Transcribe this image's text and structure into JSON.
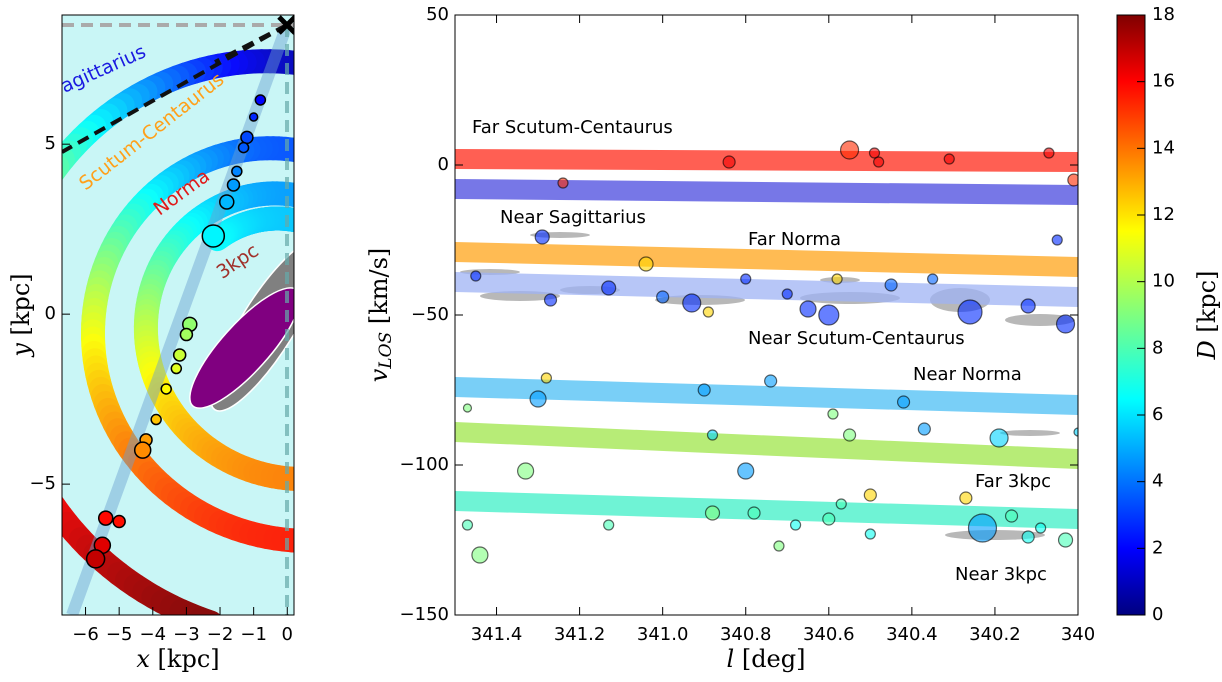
{
  "chart_data": [
    {
      "type": "scatter",
      "x_label": {
        "symbol": "x",
        "unit": "[kpc]"
      },
      "y_label": {
        "symbol": "y",
        "unit": "[kpc]"
      },
      "xlim": [
        -6.7,
        0.2
      ],
      "ylim": [
        -8.85,
        8.8
      ],
      "xticks": [
        {
          "value": -6,
          "label": "−6"
        },
        {
          "value": -5,
          "label": "−5"
        },
        {
          "value": -4,
          "label": "−4"
        },
        {
          "value": -3,
          "label": "−3"
        },
        {
          "value": -2,
          "label": "−2"
        },
        {
          "value": -1,
          "label": "−1"
        },
        0
      ],
      "yticks": [
        {
          "value": -5,
          "label": "−5"
        },
        0,
        5
      ],
      "arms": [
        {
          "name": "Sagittarius",
          "color": "#1a1ae0"
        },
        {
          "name": "Scutum-Centaurus",
          "color": "#ffa01a"
        },
        {
          "name": "Norma",
          "color": "#e01a1a"
        },
        {
          "name": "3kpc",
          "color": "#a0302a"
        }
      ],
      "points": {
        "x": [
          -0.8,
          -1.0,
          -1.2,
          -1.3,
          -1.5,
          -1.6,
          -1.8,
          -2.2,
          -2.9,
          -3.0,
          -3.2,
          -3.3,
          -3.6,
          -3.9,
          -4.2,
          -4.3,
          -5.0,
          -5.4,
          -5.5,
          -5.7
        ],
        "y": [
          6.3,
          5.8,
          5.2,
          4.9,
          4.2,
          3.8,
          3.3,
          2.3,
          -0.3,
          -0.6,
          -1.2,
          -1.6,
          -2.2,
          -3.1,
          -3.7,
          -4.0,
          -6.1,
          -6.0,
          -6.8,
          -7.2
        ],
        "D": [
          2.3,
          2.9,
          3.5,
          3.8,
          4.6,
          5.0,
          5.5,
          6.6,
          9.3,
          9.6,
          10.3,
          10.7,
          11.3,
          12.3,
          13.0,
          13.3,
          15.5,
          15.6,
          16.3,
          16.8
        ],
        "size": [
          5,
          4,
          6,
          5,
          5,
          6,
          7,
          11,
          7,
          6,
          6,
          5,
          5,
          5,
          6,
          8,
          6,
          7,
          8,
          9
        ]
      }
    },
    {
      "type": "scatter",
      "x_label": {
        "symbol": "l",
        "unit": "[deg]"
      },
      "y_label": {
        "symbol": "v",
        "subscript": "LOS",
        "unit": "[km/s]"
      },
      "xlim": [
        341.5,
        340
      ],
      "ylim": [
        -150,
        50
      ],
      "xticks": [
        341.4,
        341.2,
        {
          "value": 341,
          "label": "341.0"
        },
        340.8,
        340.6,
        340.4,
        340.2,
        340
      ],
      "yticks": [
        {
          "value": -150,
          "label": "−150"
        },
        {
          "value": -100,
          "label": "−100"
        },
        {
          "value": -50,
          "label": "−50"
        },
        0,
        50
      ],
      "bands": [
        {
          "name": "Far Scutum-Centaurus",
          "color": "#ff2a1a",
          "x": [
            341.5,
            340
          ],
          "values": [
            2,
            1
          ]
        },
        {
          "name": "Near Sagittarius",
          "color": "#4a4ae0",
          "x": [
            341.5,
            340
          ],
          "values": [
            -8,
            -10
          ]
        },
        {
          "name": "Far Norma",
          "color": "#ffa51a",
          "x": [
            341.5,
            340
          ],
          "values": [
            -29,
            -34
          ]
        },
        {
          "name": "Near Scutum-Centaurus",
          "color": "#9fb3f5",
          "x": [
            341.5,
            340
          ],
          "values": [
            -39,
            -44
          ]
        },
        {
          "name": "Near Norma",
          "color": "#4dc0f5",
          "x": [
            341.5,
            340
          ],
          "values": [
            -74,
            -80
          ]
        },
        {
          "name": "Far 3kpc",
          "color": "#9fe64a",
          "x": [
            341.5,
            340
          ],
          "values": [
            -89,
            -98
          ]
        },
        {
          "name": "Near 3kpc",
          "color": "#3ff0c8",
          "x": [
            341.5,
            340
          ],
          "values": [
            -112,
            -118
          ]
        }
      ],
      "points": {
        "x": [
          340.84,
          340.55,
          340.49,
          340.48,
          340.31,
          340.07,
          340.01,
          341.24,
          341.29,
          340.93,
          340.6,
          340.26,
          340.03,
          341.13,
          340.45,
          340.65,
          341.45,
          341.0,
          340.8,
          340.12,
          340.35,
          341.27,
          340.7,
          340.05,
          341.04,
          340.58,
          340.89,
          341.28,
          340.5,
          340.27,
          341.3,
          340.9,
          340.74,
          340.42,
          340.19,
          340.37,
          340.8,
          340.88,
          340.23,
          340.0,
          341.33,
          340.55,
          340.59,
          341.47,
          341.44,
          341.47,
          340.88,
          340.78,
          340.6,
          340.72,
          340.57,
          340.16,
          340.12,
          340.03,
          340.09,
          340.5,
          341.13,
          340.68
        ],
        "y": [
          1,
          5,
          4,
          1,
          2,
          4,
          -5,
          -6,
          -24,
          -46,
          -50,
          -49,
          -53,
          -41,
          -40,
          -48,
          -37,
          -44,
          -38,
          -47,
          -38,
          -45,
          -43,
          -25,
          -33,
          -38,
          -49,
          -71,
          -110,
          -111,
          -78,
          -75,
          -72,
          -79,
          -91,
          -88,
          -102,
          -90,
          -121,
          -89,
          -102,
          -90,
          -83,
          -81,
          -130,
          -120,
          -116,
          -116,
          -118,
          -127,
          -113,
          -117,
          -124,
          -125,
          -121,
          -123,
          -120,
          -120
        ],
        "D": [
          16,
          15,
          16,
          16,
          16,
          16,
          15,
          15,
          3,
          3,
          3,
          3,
          3,
          3,
          4,
          3,
          3,
          4,
          3,
          3,
          4,
          3,
          3,
          3,
          12,
          12,
          12,
          12,
          12,
          12,
          5,
          5,
          5,
          5,
          6,
          5,
          5,
          6,
          5,
          6,
          9,
          9,
          9,
          9,
          9,
          8,
          9,
          8,
          8,
          9,
          8,
          8,
          7,
          8,
          7,
          7,
          8,
          7
        ],
        "size": [
          6,
          9,
          5,
          5,
          5,
          5,
          6,
          5,
          7,
          9,
          10,
          12,
          9,
          7,
          6,
          8,
          5,
          6,
          5,
          7,
          5,
          6,
          5,
          5,
          7,
          5,
          5,
          5,
          6,
          6,
          8,
          6,
          6,
          6,
          9,
          6,
          8,
          5,
          14,
          4,
          8,
          6,
          5,
          4,
          8,
          5,
          7,
          6,
          6,
          5,
          5,
          6,
          6,
          7,
          5,
          5,
          5,
          5
        ]
      }
    }
  ],
  "colorbar": {
    "label": {
      "symbol": "D",
      "unit": "[kpc]"
    },
    "lim": [
      0,
      18
    ],
    "ticks": [
      0,
      2,
      4,
      6,
      8,
      10,
      12,
      14,
      16,
      18
    ]
  }
}
